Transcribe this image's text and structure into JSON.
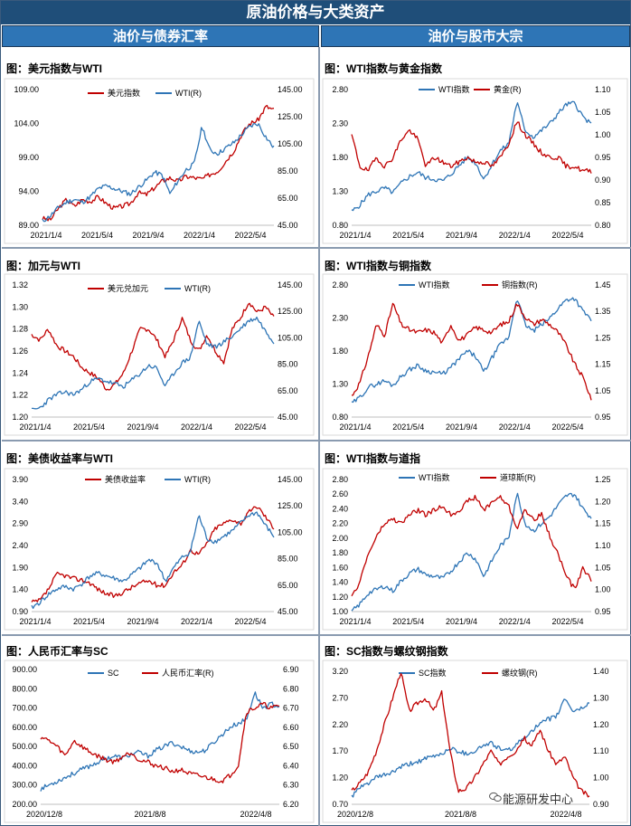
{
  "page_title": "原油价格与大类资产",
  "headers": {
    "left": "油价与债券汇率",
    "right": "油价与股市大宗"
  },
  "watermark": "能源研发中心",
  "colors": {
    "red": "#c00000",
    "blue": "#2e75b6",
    "header_dark": "#1f4e79",
    "header_mid": "#2e75b6"
  },
  "chart_data": [
    {
      "id": "usd_wti",
      "type": "line",
      "title": "图：美元指数与WTI",
      "series": [
        {
          "name": "美元指数",
          "color": "#c00000",
          "axis": "left",
          "seed": 3,
          "anchors": [
            90.0,
            89.8,
            91.5,
            92.8,
            91.8,
            92.8,
            92.5,
            93.2,
            92.2,
            91.5,
            91.8,
            92.2,
            93.8,
            93.5,
            94.5,
            95.5,
            96.0,
            95.5,
            96.2,
            96.0,
            95.8,
            96.5,
            97.0,
            98.5,
            100.0,
            102.5,
            104.0,
            104.5,
            106.5,
            106.0
          ]
        },
        {
          "name": "WTI(R)",
          "color": "#2e75b6",
          "axis": "right",
          "seed": 11,
          "anchors": [
            48,
            52,
            58,
            62,
            64,
            62,
            66,
            72,
            74,
            72,
            70,
            68,
            73,
            78,
            84,
            82,
            68,
            78,
            86,
            90,
            118,
            100,
            98,
            102,
            106,
            112,
            118,
            120,
            110,
            102
          ]
        }
      ],
      "x_ticks": [
        "2021/1/4",
        "2021/5/4",
        "2021/9/4",
        "2022/1/4",
        "2022/5/4"
      ],
      "y_left": {
        "min": 89,
        "max": 109,
        "ticks": [
          "109.00",
          "104.00",
          "99.00",
          "94.00",
          "89.00"
        ]
      },
      "y_right": {
        "min": 45,
        "max": 145,
        "ticks": [
          "145.00",
          "125.00",
          "105.00",
          "85.00",
          "65.00",
          "45.00"
        ]
      }
    },
    {
      "id": "wti_gold",
      "type": "line",
      "title": "图：WTI指数与黄金指数",
      "series": [
        {
          "name": "WTI指数",
          "color": "#2e75b6",
          "axis": "left",
          "seed": 5,
          "anchors": [
            1.0,
            1.1,
            1.25,
            1.3,
            1.35,
            1.28,
            1.42,
            1.52,
            1.58,
            1.5,
            1.48,
            1.45,
            1.55,
            1.68,
            1.8,
            1.72,
            1.48,
            1.7,
            1.9,
            2.0,
            2.62,
            2.2,
            2.1,
            2.2,
            2.3,
            2.45,
            2.58,
            2.6,
            2.4,
            2.28
          ]
        },
        {
          "name": "黄金(R)",
          "color": "#c00000",
          "axis": "right",
          "seed": 19,
          "anchors": [
            1.0,
            0.93,
            0.92,
            0.95,
            0.93,
            0.95,
            0.99,
            1.01,
            0.99,
            0.93,
            0.95,
            0.94,
            0.93,
            0.94,
            0.95,
            0.94,
            0.94,
            0.93,
            0.95,
            0.98,
            1.03,
            1.0,
            0.98,
            0.96,
            0.95,
            0.95,
            0.93,
            0.93,
            0.92,
            0.92
          ]
        }
      ],
      "x_ticks": [
        "2021/1/4",
        "2021/5/4",
        "2021/9/4",
        "2022/1/4",
        "2022/5/4"
      ],
      "y_left": {
        "min": 0.8,
        "max": 2.8,
        "ticks": [
          "2.80",
          "2.30",
          "1.80",
          "1.30",
          "0.80"
        ]
      },
      "y_right": {
        "min": 0.8,
        "max": 1.1,
        "ticks": [
          "1.10",
          "1.05",
          "1.00",
          "0.95",
          "0.90",
          "0.85",
          "0.80"
        ]
      }
    },
    {
      "id": "cad_wti",
      "type": "line",
      "title": "图：加元与WTI",
      "series": [
        {
          "name": "美元兑加元",
          "color": "#c00000",
          "axis": "left",
          "seed": 7,
          "anchors": [
            1.275,
            1.27,
            1.28,
            1.265,
            1.26,
            1.255,
            1.245,
            1.24,
            1.235,
            1.225,
            1.23,
            1.24,
            1.26,
            1.28,
            1.28,
            1.27,
            1.255,
            1.27,
            1.29,
            1.27,
            1.26,
            1.275,
            1.26,
            1.25,
            1.28,
            1.29,
            1.305,
            1.295,
            1.3,
            1.29
          ]
        },
        {
          "name": "WTI(R)",
          "color": "#2e75b6",
          "axis": "right",
          "seed": 23,
          "anchors": [
            50,
            52,
            58,
            62,
            64,
            62,
            66,
            72,
            74,
            72,
            70,
            68,
            73,
            78,
            84,
            82,
            68,
            78,
            86,
            90,
            118,
            100,
            98,
            102,
            106,
            112,
            118,
            120,
            110,
            102
          ]
        }
      ],
      "x_ticks": [
        "2021/1/4",
        "2021/5/4",
        "2021/9/4",
        "2022/1/4",
        "2022/5/4"
      ],
      "y_left": {
        "min": 1.2,
        "max": 1.32,
        "ticks": [
          "1.32",
          "1.30",
          "1.28",
          "1.26",
          "1.24",
          "1.22",
          "1.20"
        ]
      },
      "y_right": {
        "min": 45,
        "max": 145,
        "ticks": [
          "145.00",
          "125.00",
          "105.00",
          "85.00",
          "65.00",
          "45.00"
        ]
      }
    },
    {
      "id": "wti_copper",
      "type": "line",
      "title": "图：WTI指数与铜指数",
      "series": [
        {
          "name": "WTI指数",
          "color": "#2e75b6",
          "axis": "left",
          "seed": 29,
          "anchors": [
            1.0,
            1.1,
            1.25,
            1.3,
            1.35,
            1.28,
            1.42,
            1.52,
            1.58,
            1.5,
            1.48,
            1.45,
            1.55,
            1.68,
            1.8,
            1.72,
            1.48,
            1.7,
            1.9,
            2.0,
            2.62,
            2.2,
            2.1,
            2.2,
            2.3,
            2.45,
            2.58,
            2.6,
            2.4,
            2.28
          ]
        },
        {
          "name": "铜指数(R)",
          "color": "#c00000",
          "axis": "right",
          "seed": 31,
          "anchors": [
            1.03,
            1.08,
            1.18,
            1.3,
            1.26,
            1.38,
            1.3,
            1.28,
            1.27,
            1.28,
            1.27,
            1.23,
            1.3,
            1.24,
            1.26,
            1.29,
            1.28,
            1.27,
            1.3,
            1.31,
            1.38,
            1.33,
            1.3,
            1.32,
            1.3,
            1.27,
            1.22,
            1.15,
            1.1,
            1.02
          ]
        }
      ],
      "x_ticks": [
        "2021/1/4",
        "2021/5/4",
        "2021/9/4",
        "2022/1/4",
        "2022/5/4"
      ],
      "y_left": {
        "min": 0.8,
        "max": 2.8,
        "ticks": [
          "2.80",
          "2.30",
          "1.80",
          "1.30",
          "0.80"
        ]
      },
      "y_right": {
        "min": 0.95,
        "max": 1.45,
        "ticks": [
          "1.45",
          "1.35",
          "1.25",
          "1.15",
          "1.05",
          "0.95"
        ]
      }
    },
    {
      "id": "yield_wti",
      "type": "line",
      "title": "图：美债收益率与WTI",
      "series": [
        {
          "name": "美债收益率",
          "color": "#c00000",
          "axis": "left",
          "seed": 37,
          "anchors": [
            1.1,
            1.15,
            1.4,
            1.75,
            1.72,
            1.65,
            1.62,
            1.55,
            1.4,
            1.3,
            1.25,
            1.35,
            1.45,
            1.55,
            1.6,
            1.5,
            1.5,
            1.8,
            1.95,
            2.3,
            2.2,
            2.45,
            2.8,
            2.9,
            3.0,
            2.9,
            3.15,
            3.3,
            3.05,
            2.8
          ]
        },
        {
          "name": "WTI(R)",
          "color": "#2e75b6",
          "axis": "right",
          "seed": 41,
          "anchors": [
            48,
            52,
            58,
            62,
            64,
            62,
            66,
            72,
            74,
            72,
            70,
            68,
            73,
            78,
            84,
            82,
            68,
            78,
            86,
            90,
            118,
            100,
            98,
            102,
            106,
            112,
            118,
            120,
            110,
            102
          ]
        }
      ],
      "x_ticks": [
        "2021/1/4",
        "2021/5/4",
        "2021/9/4",
        "2022/1/4",
        "2022/5/4"
      ],
      "y_left": {
        "min": 0.9,
        "max": 3.9,
        "ticks": [
          "3.90",
          "3.40",
          "2.90",
          "2.40",
          "1.90",
          "1.40",
          "0.90"
        ]
      },
      "y_right": {
        "min": 45,
        "max": 145,
        "ticks": [
          "145.00",
          "125.00",
          "105.00",
          "85.00",
          "65.00",
          "45.00"
        ]
      }
    },
    {
      "id": "wti_dow",
      "type": "line",
      "title": "图：WTI指数与道指",
      "series": [
        {
          "name": "WTI指数",
          "color": "#2e75b6",
          "axis": "left",
          "seed": 43,
          "anchors": [
            1.0,
            1.1,
            1.25,
            1.3,
            1.35,
            1.28,
            1.42,
            1.52,
            1.58,
            1.5,
            1.48,
            1.45,
            1.55,
            1.68,
            1.8,
            1.72,
            1.48,
            1.7,
            1.9,
            2.0,
            2.62,
            2.2,
            2.1,
            2.2,
            2.3,
            2.45,
            2.58,
            2.6,
            2.4,
            2.28
          ]
        },
        {
          "name": "道琼斯(R)",
          "color": "#c00000",
          "axis": "right",
          "seed": 47,
          "anchors": [
            0.98,
            1.02,
            1.08,
            1.12,
            1.15,
            1.16,
            1.15,
            1.17,
            1.18,
            1.17,
            1.18,
            1.19,
            1.17,
            1.18,
            1.2,
            1.21,
            1.18,
            1.2,
            1.21,
            1.19,
            1.14,
            1.18,
            1.16,
            1.17,
            1.12,
            1.08,
            1.03,
            1.0,
            1.05,
            1.02
          ]
        }
      ],
      "x_ticks": [
        "2021/1/4",
        "2021/5/4",
        "2021/9/4",
        "2022/1/4",
        "2022/5/4"
      ],
      "y_left": {
        "min": 1.0,
        "max": 2.8,
        "ticks": [
          "2.80",
          "2.60",
          "2.40",
          "2.20",
          "2.00",
          "1.80",
          "1.60",
          "1.40",
          "1.20",
          "1.00"
        ]
      },
      "y_right": {
        "min": 0.95,
        "max": 1.25,
        "ticks": [
          "1.25",
          "1.20",
          "1.15",
          "1.10",
          "1.05",
          "1.00",
          "0.95"
        ]
      }
    },
    {
      "id": "cny_sc",
      "type": "line",
      "title": "图：人民币汇率与SC",
      "series": [
        {
          "name": "SC",
          "color": "#2e75b6",
          "axis": "left",
          "seed": 53,
          "anchors": [
            280,
            300,
            320,
            340,
            360,
            380,
            400,
            420,
            440,
            450,
            440,
            460,
            470,
            450,
            480,
            500,
            520,
            500,
            480,
            470,
            480,
            520,
            560,
            600,
            620,
            640,
            780,
            700,
            720,
            710
          ]
        },
        {
          "name": "人民币汇率(R)",
          "color": "#c00000",
          "axis": "right",
          "seed": 59,
          "anchors": [
            6.55,
            6.53,
            6.5,
            6.45,
            6.53,
            6.5,
            6.47,
            6.45,
            6.43,
            6.42,
            6.45,
            6.47,
            6.43,
            6.42,
            6.4,
            6.39,
            6.37,
            6.38,
            6.36,
            6.35,
            6.34,
            6.33,
            6.32,
            6.35,
            6.4,
            6.68,
            6.7,
            6.72,
            6.7,
            6.71
          ]
        }
      ],
      "x_ticks": [
        "2020/12/8",
        "2021/8/8",
        "2022/4/8"
      ],
      "y_left": {
        "min": 200,
        "max": 900,
        "ticks": [
          "900.00",
          "800.00",
          "700.00",
          "600.00",
          "500.00",
          "400.00",
          "300.00",
          "200.00"
        ]
      },
      "y_right": {
        "min": 6.2,
        "max": 6.9,
        "ticks": [
          "6.90",
          "6.80",
          "6.70",
          "6.60",
          "6.50",
          "6.40",
          "6.30",
          "6.20"
        ]
      }
    },
    {
      "id": "sc_rebar",
      "type": "line",
      "title": "图：SC指数与螺纹钢指数",
      "series": [
        {
          "name": "SC指数",
          "color": "#2e75b6",
          "axis": "left",
          "seed": 61,
          "anchors": [
            0.85,
            1.0,
            1.1,
            1.2,
            1.25,
            1.3,
            1.4,
            1.45,
            1.5,
            1.55,
            1.6,
            1.65,
            1.75,
            1.7,
            1.65,
            1.7,
            1.8,
            1.85,
            1.75,
            1.7,
            1.8,
            1.95,
            2.1,
            2.2,
            2.3,
            2.35,
            2.7,
            2.45,
            2.5,
            2.6
          ]
        },
        {
          "name": "螺纹钢(R)",
          "color": "#c00000",
          "axis": "right",
          "seed": 67,
          "anchors": [
            0.95,
            0.98,
            1.02,
            1.1,
            1.2,
            1.3,
            1.4,
            1.25,
            1.28,
            1.3,
            1.25,
            1.32,
            1.1,
            0.95,
            0.96,
            1.0,
            1.05,
            1.1,
            1.05,
            1.08,
            1.1,
            1.15,
            1.12,
            1.18,
            1.1,
            1.05,
            1.08,
            1.0,
            0.95,
            0.93
          ]
        }
      ],
      "x_ticks": [
        "2020/12/8",
        "2021/8/8",
        "2022/4/8"
      ],
      "y_left": {
        "min": 0.7,
        "max": 3.2,
        "ticks": [
          "3.20",
          "2.70",
          "2.20",
          "1.70",
          "1.20",
          "0.70"
        ]
      },
      "y_right": {
        "min": 0.9,
        "max": 1.4,
        "ticks": [
          "1.40",
          "1.30",
          "1.20",
          "1.10",
          "1.00",
          "0.90"
        ]
      }
    }
  ]
}
